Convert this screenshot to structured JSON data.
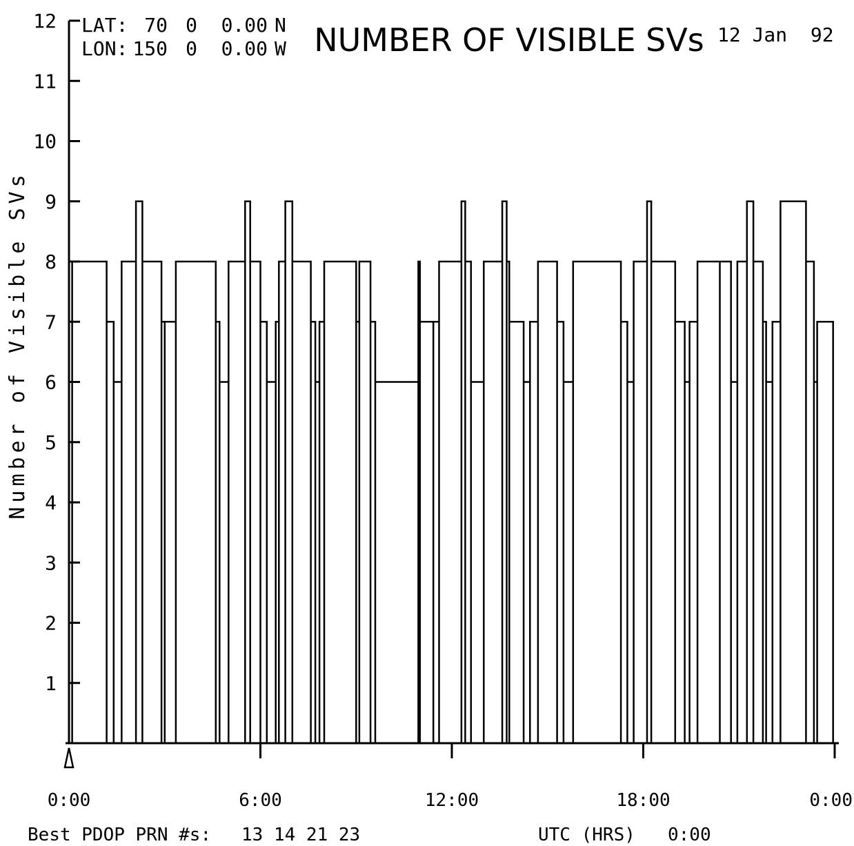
{
  "chart_data": {
    "type": "line",
    "step": true,
    "title": "NUMBER OF VISIBLE SVs",
    "date": "12 Jan  92",
    "location": {
      "lat_label": "LAT:",
      "lat_deg": "70",
      "lat_min": "0",
      "lat_sec": "0.00",
      "lat_hem": "N",
      "lon_label": "LON:",
      "lon_deg": "150",
      "lon_min": "0",
      "lon_sec": "0.00",
      "lon_hem": "W"
    },
    "ylabel": "Number of Visible SVs",
    "xlabel": "UTC (HRS)",
    "utc_value": "0:00",
    "ylim": [
      0,
      12
    ],
    "xlim": [
      0,
      24
    ],
    "yticks": [
      {
        "v": 1,
        "label": "1"
      },
      {
        "v": 2,
        "label": "2"
      },
      {
        "v": 3,
        "label": "3"
      },
      {
        "v": 4,
        "label": "4"
      },
      {
        "v": 5,
        "label": "5"
      },
      {
        "v": 6,
        "label": "6"
      },
      {
        "v": 7,
        "label": "7"
      },
      {
        "v": 8,
        "label": "8"
      },
      {
        "v": 9,
        "label": "9"
      },
      {
        "v": 10,
        "label": "10"
      },
      {
        "v": 11,
        "label": "11"
      },
      {
        "v": 12,
        "label": "12"
      }
    ],
    "xticks": [
      {
        "v": 0,
        "label": "0:00"
      },
      {
        "v": 6,
        "label": "6:00"
      },
      {
        "v": 12,
        "label": "12:00"
      },
      {
        "v": 18,
        "label": "18:00"
      },
      {
        "v": 24,
        "label": "0:00"
      }
    ],
    "series": [
      {
        "x": [
          0.1,
          1.18,
          1.4,
          1.65,
          2.1,
          2.3,
          2.9,
          3.0,
          3.35,
          4.6,
          4.72,
          5.0,
          5.52,
          5.68,
          6.0,
          6.2,
          6.48,
          6.58,
          6.78,
          7.0,
          7.58,
          7.72,
          7.85,
          8.0,
          9.0,
          9.1,
          9.45,
          9.6,
          10.95,
          11.0,
          11.42,
          11.6,
          12.3,
          12.42,
          12.6,
          13.0,
          13.58,
          13.72,
          13.8,
          14.25,
          14.45,
          14.7,
          15.3,
          15.5,
          15.8,
          17.3,
          17.5,
          17.7,
          18.12,
          18.25,
          19.0,
          19.3,
          19.45,
          19.7,
          20.4,
          20.75,
          20.95,
          21.25,
          21.45,
          21.75,
          21.85,
          22.05,
          22.3,
          23.1,
          23.35,
          23.45
        ],
        "y": [
          8,
          7,
          6,
          8,
          9,
          8,
          7,
          7,
          8,
          7,
          6,
          8,
          9,
          8,
          7,
          6,
          7,
          8,
          9,
          8,
          7,
          6,
          7,
          8,
          7,
          8,
          7,
          6,
          8,
          7,
          7,
          8,
          9,
          8,
          6,
          8,
          9,
          8,
          7,
          6,
          7,
          8,
          7,
          6,
          8,
          7,
          6,
          8,
          9,
          8,
          7,
          6,
          7,
          8,
          8,
          6,
          8,
          9,
          8,
          7,
          6,
          7,
          9,
          8,
          6,
          7
        ]
      }
    ],
    "marker_at": 0,
    "footer_label": "Best PDOP PRN #s:",
    "footer_prns": "13 14 21 23"
  }
}
